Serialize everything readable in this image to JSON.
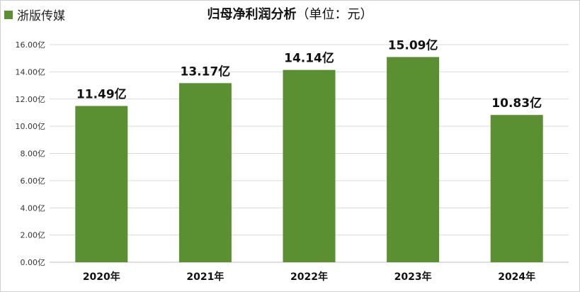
{
  "legend": {
    "label": "浙版传媒",
    "color": "#5a8f32"
  },
  "title": {
    "main": "归母净利润分析",
    "sub": "（单位：元）"
  },
  "chart_data": {
    "type": "bar",
    "categories": [
      "2020年",
      "2021年",
      "2022年",
      "2023年",
      "2024年"
    ],
    "series": [
      {
        "name": "浙版传媒",
        "values": [
          11.49,
          13.17,
          14.14,
          15.09,
          10.83
        ],
        "data_labels": [
          "11.49亿",
          "13.17亿",
          "14.14亿",
          "15.09亿",
          "10.83亿"
        ]
      }
    ],
    "ylim": [
      0,
      16
    ],
    "yticks": [
      0,
      2,
      4,
      6,
      8,
      10,
      12,
      14,
      16
    ],
    "ytick_labels": [
      "0.00亿",
      "2.00亿",
      "4.00亿",
      "6.00亿",
      "8.00亿",
      "10.00亿",
      "12.00亿",
      "14.00亿",
      "16.00亿"
    ],
    "grid": true,
    "legend_position": "top-left",
    "bar_color": "#5a8f32"
  }
}
